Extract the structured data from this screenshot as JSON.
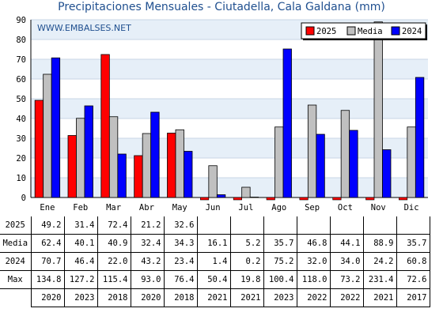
{
  "chart_data": {
    "type": "bar",
    "title": "Precipitaciones Mensuales - Ciutadella, Cala Galdana (mm)",
    "watermark": "WWW.EMBALSES.NET",
    "categories": [
      "Ene",
      "Feb",
      "Mar",
      "Abr",
      "May",
      "Jun",
      "Jul",
      "Ago",
      "Sep",
      "Oct",
      "Nov",
      "Dic"
    ],
    "series": [
      {
        "name": "2025",
        "color": "#ff0000",
        "values": [
          49.2,
          31.4,
          72.4,
          21.2,
          32.6,
          0,
          0,
          0,
          0,
          0,
          0,
          0
        ]
      },
      {
        "name": "Media",
        "color": "#c0c0c0",
        "values": [
          62.4,
          40.1,
          40.9,
          32.4,
          34.3,
          16.1,
          5.2,
          35.7,
          46.8,
          44.1,
          88.9,
          35.7
        ]
      },
      {
        "name": "2024",
        "color": "#0000ff",
        "values": [
          70.7,
          46.4,
          22.0,
          43.2,
          23.4,
          1.4,
          0.2,
          75.2,
          32.0,
          34.0,
          24.2,
          60.8
        ]
      }
    ],
    "ylim": [
      0,
      90
    ],
    "yticks": [
      "0",
      "10",
      "20",
      "30",
      "40",
      "50",
      "60",
      "70",
      "80",
      "90"
    ],
    "legend_position": "top-right",
    "grid": true
  },
  "table": {
    "rows": [
      {
        "label": "2025",
        "cells": [
          "49.2",
          "31.4",
          "72.4",
          "21.2",
          "32.6",
          "",
          "",
          "",
          "",
          "",
          "",
          ""
        ]
      },
      {
        "label": "Media",
        "cells": [
          "62.4",
          "40.1",
          "40.9",
          "32.4",
          "34.3",
          "16.1",
          "5.2",
          "35.7",
          "46.8",
          "44.1",
          "88.9",
          "35.7"
        ]
      },
      {
        "label": "2024",
        "cells": [
          "70.7",
          "46.4",
          "22.0",
          "43.2",
          "23.4",
          "1.4",
          "0.2",
          "75.2",
          "32.0",
          "34.0",
          "24.2",
          "60.8"
        ]
      },
      {
        "label": "Max",
        "cells": [
          "134.8",
          "127.2",
          "115.4",
          "93.0",
          "76.4",
          "50.4",
          "19.8",
          "100.4",
          "118.0",
          "73.2",
          "231.4",
          "72.6"
        ]
      },
      {
        "label": "",
        "cells": [
          "2020",
          "2023",
          "2018",
          "2020",
          "2018",
          "2021",
          "2021",
          "2023",
          "2022",
          "2022",
          "2021",
          "2017"
        ]
      }
    ]
  }
}
